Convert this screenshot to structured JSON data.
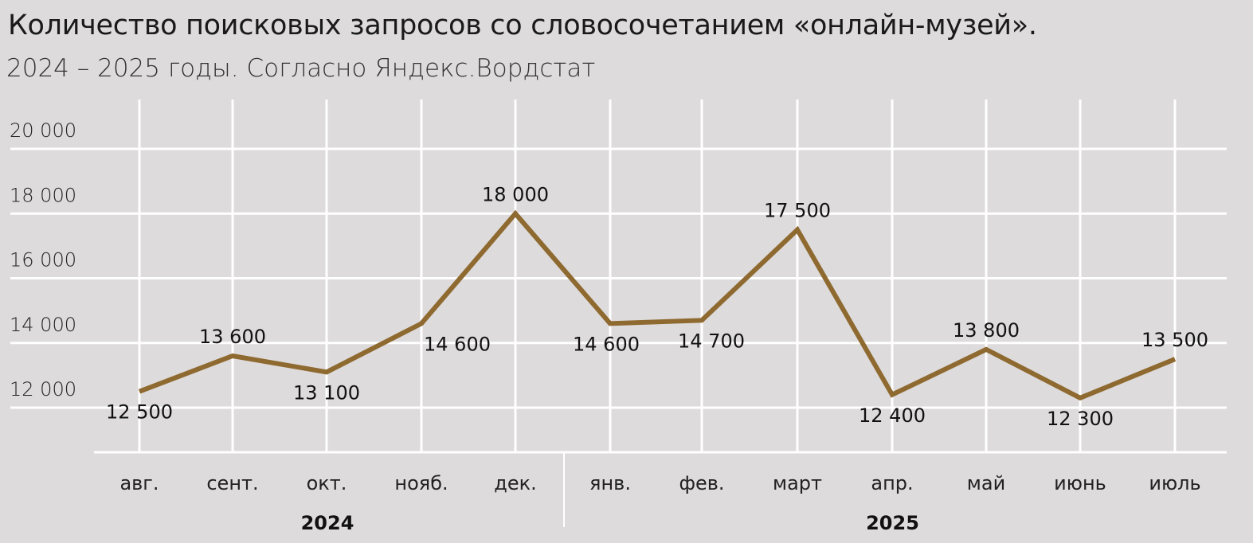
{
  "chart_data": {
    "type": "line",
    "title": "Количество поисковых запросов со словосочетанием «онлайн-музей».",
    "subtitle": "2024 – 2025 годы. Согласно Яндекс.Вордстат",
    "categories": [
      "авг.",
      "сент.",
      "окт.",
      "нояб.",
      "дек.",
      "янв.",
      "фев.",
      "март",
      "апр.",
      "май",
      "июнь",
      "июль"
    ],
    "groups": [
      {
        "label": "2024",
        "count": 5
      },
      {
        "label": "2025",
        "count": 7
      }
    ],
    "values": [
      12500,
      13600,
      13100,
      14600,
      18000,
      14600,
      14700,
      17500,
      12400,
      13800,
      12300,
      13500
    ],
    "data_labels": [
      "12 500",
      "13 600",
      "13 100",
      "14 600",
      "18 000",
      "14 600",
      "14 700",
      "17 500",
      "12 400",
      "13 800",
      "12 300",
      "13 500"
    ],
    "y_ticks": [
      12000,
      14000,
      16000,
      18000,
      20000
    ],
    "y_tick_labels": [
      "12 000",
      "14 000",
      "16 000",
      "18 000",
      "20 000"
    ],
    "ylim": [
      12000,
      20000
    ],
    "grid": true,
    "line_color": "#8f6a30",
    "background": "#dddbdc"
  }
}
